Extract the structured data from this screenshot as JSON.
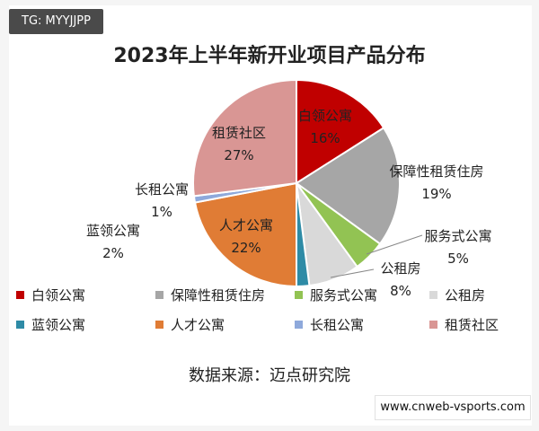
{
  "watermark_tag": "TG: MYYJJPP",
  "site_label": "www.cnweb-vsports.com",
  "source_text": "数据来源：迈点研究院",
  "chart_data": {
    "type": "pie",
    "title": "2023年上半年新开业项目产品分布",
    "categories": [
      "白领公寓",
      "保障性租赁住房",
      "服务式公寓",
      "公租房",
      "蓝领公寓",
      "人才公寓",
      "长租公寓",
      "租赁社区"
    ],
    "values": [
      16,
      19,
      5,
      8,
      2,
      22,
      1,
      27
    ],
    "value_labels": [
      "16%",
      "19%",
      "5%",
      "8%",
      "2%",
      "22%",
      "1%",
      "27%"
    ],
    "colors": [
      "#c00000",
      "#a6a6a6",
      "#92c353",
      "#d9d9d9",
      "#2e8ba6",
      "#e07c35",
      "#8ea9db",
      "#d99694"
    ],
    "legend_position": "bottom"
  }
}
